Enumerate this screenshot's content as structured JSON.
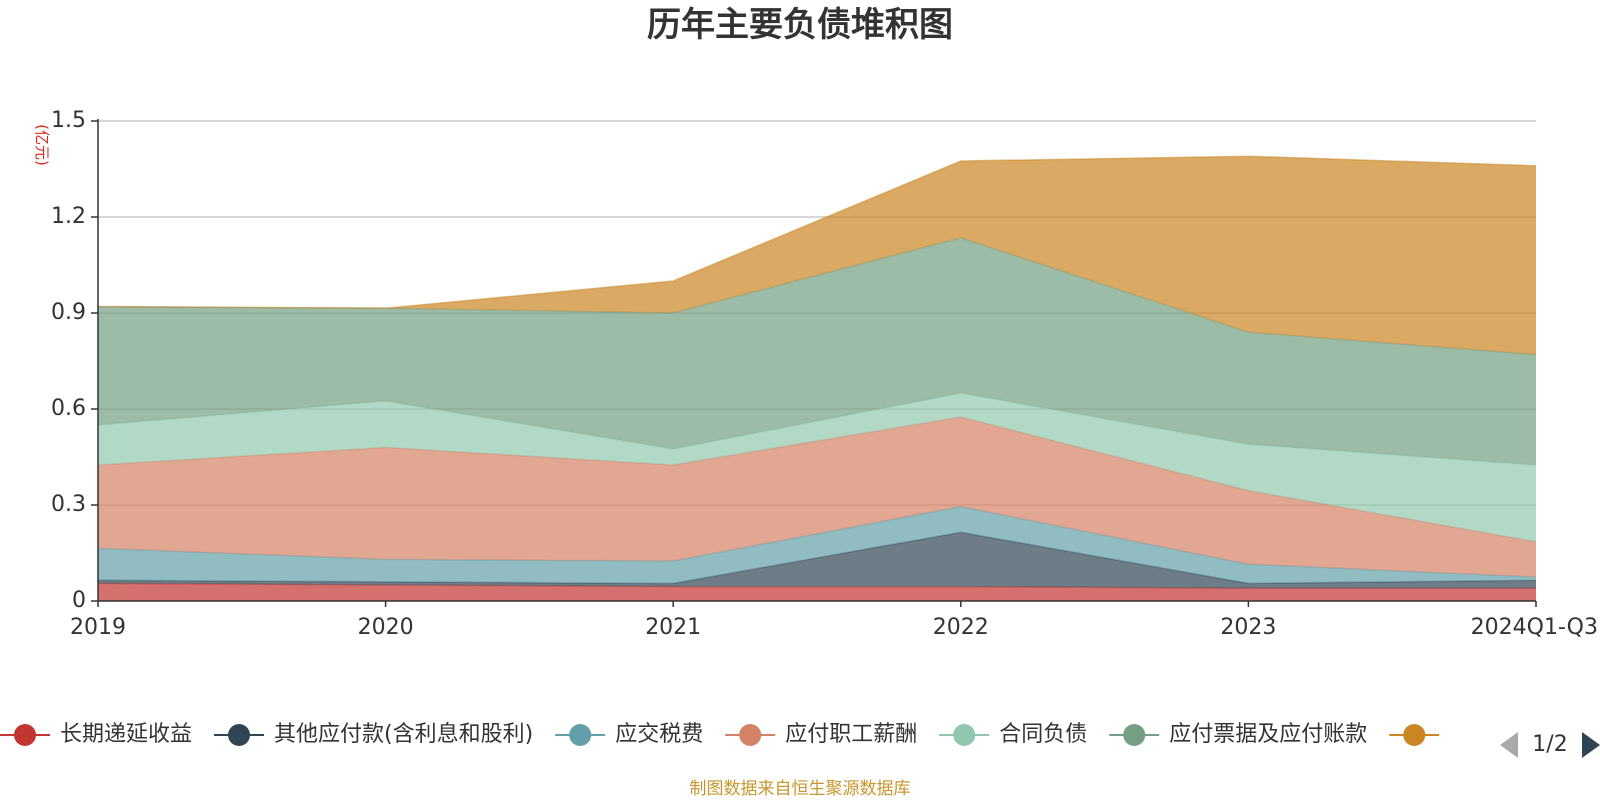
{
  "chart_data": {
    "type": "area",
    "stacked": true,
    "title": "历年主要负债堆积图",
    "y_unit": "(亿元)",
    "categories": [
      "2019",
      "2020",
      "2021",
      "2022",
      "2023",
      "2024Q1-Q3"
    ],
    "ylim": [
      0,
      1.5
    ],
    "y_ticks": [
      "0",
      "0.3",
      "0.6",
      "0.9",
      "1.2",
      "1.5"
    ],
    "grid": true,
    "legend_position": "bottom",
    "series": [
      {
        "name": "长期递延收益",
        "color": "#c23531",
        "values": [
          0.055,
          0.05,
          0.045,
          0.045,
          0.04,
          0.04
        ]
      },
      {
        "name": "其他应付款(含利息和股利)",
        "color": "#2f4554",
        "values": [
          0.01,
          0.01,
          0.01,
          0.17,
          0.015,
          0.025
        ]
      },
      {
        "name": "应交税费",
        "color": "#61a0a8",
        "values": [
          0.1,
          0.07,
          0.07,
          0.08,
          0.06,
          0.01
        ]
      },
      {
        "name": "应付职工薪酬",
        "color": "#d48265",
        "values": [
          0.26,
          0.35,
          0.3,
          0.28,
          0.23,
          0.11
        ]
      },
      {
        "name": "合同负债",
        "color": "#91c7ae",
        "values": [
          0.125,
          0.145,
          0.05,
          0.075,
          0.145,
          0.24
        ]
      },
      {
        "name": "应付票据及应付账款",
        "color": "#749f83",
        "values": [
          0.37,
          0.29,
          0.425,
          0.485,
          0.35,
          0.345
        ]
      },
      {
        "name": "",
        "color": "#ca8622",
        "values": [
          0.0,
          0.0,
          0.1,
          0.24,
          0.55,
          0.59
        ]
      }
    ]
  },
  "legend": {
    "page_indicator": "1/2"
  },
  "source_note": "制图数据来自恒生聚源数据库"
}
